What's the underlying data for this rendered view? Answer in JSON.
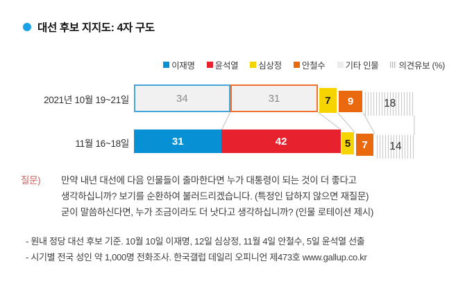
{
  "header": {
    "title": "대선 후보 지지도: 4자 구도",
    "bullet_color": "#1ba1e6"
  },
  "legend": {
    "items": [
      {
        "label": "이재명",
        "swatch": "solid",
        "color": "#0790d4"
      },
      {
        "label": "윤석열",
        "swatch": "solid",
        "color": "#e8212e"
      },
      {
        "label": "심상정",
        "swatch": "solid",
        "color": "#f6d400"
      },
      {
        "label": "안철수",
        "swatch": "solid",
        "color": "#ea680e"
      },
      {
        "label": "기타 인물",
        "swatch": "solid",
        "color": "#ececec"
      },
      {
        "label": "의견유보 (%)",
        "swatch": "striped",
        "color": "#c2c2c2"
      }
    ]
  },
  "chart_data": {
    "type": "bar",
    "orientation": "horizontal",
    "stacked": true,
    "value_unit": "%",
    "categories": [
      "2021년 10월 19~21일",
      "11월 16~18일"
    ],
    "series": [
      {
        "name": "이재명",
        "values": [
          34,
          31
        ]
      },
      {
        "name": "윤석열",
        "values": [
          31,
          42
        ]
      },
      {
        "name": "심상정",
        "values": [
          7,
          5
        ]
      },
      {
        "name": "안철수",
        "values": [
          9,
          7
        ]
      },
      {
        "name": "의견유보",
        "values": [
          18,
          14
        ]
      }
    ],
    "rows": [
      {
        "category": "2021년 10월 19~21일",
        "segments": [
          {
            "series": "이재명",
            "value": 34,
            "style": "outline"
          },
          {
            "series": "윤석열",
            "value": 31,
            "style": "outline"
          },
          {
            "series": "심상정",
            "value": 7,
            "style": "solid"
          },
          {
            "series": "안철수",
            "value": 9,
            "style": "solid"
          },
          {
            "series": "의견유보",
            "value": 18,
            "style": "striped"
          }
        ]
      },
      {
        "category": "11월 16~18일",
        "segments": [
          {
            "series": "이재명",
            "value": 31,
            "style": "solid"
          },
          {
            "series": "윤석열",
            "value": 42,
            "style": "solid"
          },
          {
            "series": "심상정",
            "value": 5,
            "style": "solid"
          },
          {
            "series": "안철수",
            "value": 7,
            "style": "solid"
          },
          {
            "series": "의견유보",
            "value": 14,
            "style": "striped"
          }
        ]
      }
    ]
  },
  "colors": {
    "series": {
      "이재명": "#0790d4",
      "윤석열": "#e8212e",
      "심상정": "#f6d400",
      "안철수": "#ea680e"
    },
    "outline": {
      "이재명": "#44a3d9",
      "윤석열": "#f2702e"
    },
    "outline_fill": "#f1f1f1",
    "outline_text": "#8a8a8a",
    "stripe_line": "#c9c9c9",
    "stripe_text": "#2e2e2e",
    "yellow_text": "#1a1a1a",
    "connector": "#bfbfbf"
  },
  "question": {
    "label": "질문)",
    "label_color": "#c7625d",
    "lines": [
      "만약 내년 대선에 다음 인물들이 출마한다면 누가 대통령이 되는 것이 더 좋다고",
      "생각하십니까? 보기를 순환하여 불러드리겠습니다. (특정인 답하지 않으면 재질문)",
      "굳이 말씀하신다면, 누가 조금이라도 더 낫다고 생각하십니까? (인물 로테이션 제시)"
    ]
  },
  "footnotes": [
    "- 원내 정당 대선 후보 기준. 10월 10일 이재명, 12일 심상정, 11월 4일 안철수, 5일 윤석열 선출",
    "- 시기별 전국 성인 약 1,000명 전화조사. 한국갤럽 데일리 오피니언 제473호 www.gallup.co.kr"
  ]
}
